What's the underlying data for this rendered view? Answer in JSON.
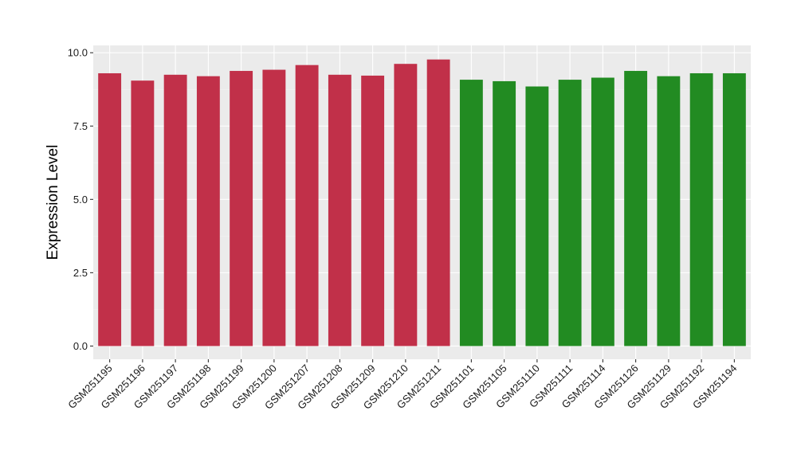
{
  "chart_data": {
    "type": "bar",
    "title": "",
    "xlabel": "",
    "ylabel": "Expression Level",
    "ylim": [
      -0.45,
      10.25
    ],
    "yticks": [
      0.0,
      2.5,
      5.0,
      7.5,
      10.0
    ],
    "ytick_labels": [
      "0.0",
      "2.5",
      "5.0",
      "7.5",
      "10.0"
    ],
    "grid": true,
    "legend": "none",
    "categories": [
      "GSM251195",
      "GSM251196",
      "GSM251197",
      "GSM251198",
      "GSM251199",
      "GSM251200",
      "GSM251207",
      "GSM251208",
      "GSM251209",
      "GSM251210",
      "GSM251211",
      "GSM251101",
      "GSM251105",
      "GSM251110",
      "GSM251111",
      "GSM251114",
      "GSM251126",
      "GSM251129",
      "GSM251192",
      "GSM251194"
    ],
    "values": [
      9.3,
      9.05,
      9.25,
      9.2,
      9.38,
      9.42,
      9.58,
      9.25,
      9.22,
      9.62,
      9.77,
      9.08,
      9.03,
      8.85,
      9.08,
      9.15,
      9.38,
      9.2,
      9.3,
      9.3
    ],
    "groups": [
      "red",
      "red",
      "red",
      "red",
      "red",
      "red",
      "red",
      "red",
      "red",
      "red",
      "red",
      "green",
      "green",
      "green",
      "green",
      "green",
      "green",
      "green",
      "green",
      "green"
    ],
    "colors": {
      "red": "#c13049",
      "green": "#228b22",
      "panel": "#ebebeb",
      "grid_major": "#ffffff",
      "grid_minor": "#f4f4f4",
      "tick": "#333333"
    }
  }
}
